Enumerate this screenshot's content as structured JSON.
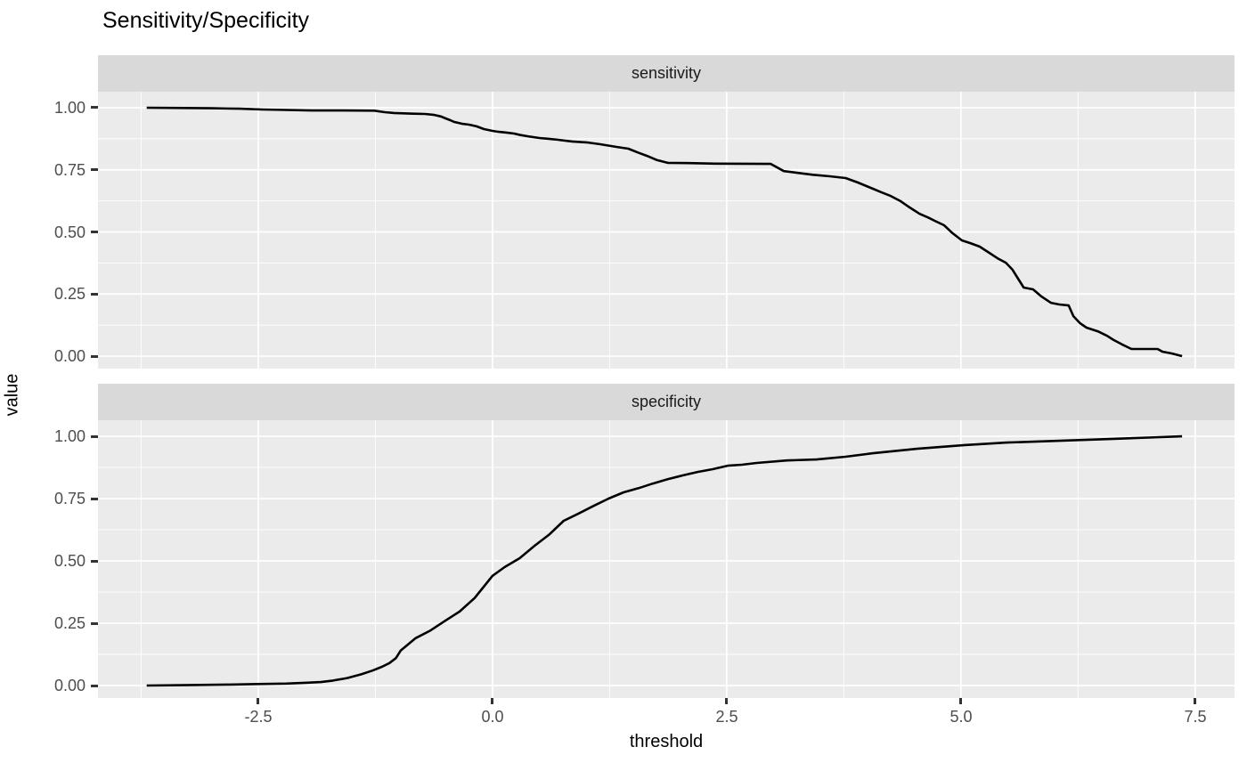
{
  "title": "Sensitivity/Specificity",
  "chart_data": {
    "type": "line",
    "title": "Sensitivity/Specificity",
    "xlabel": "threshold",
    "ylabel": "value",
    "legend": false,
    "grid": true,
    "xlim": [
      -4.21,
      7.92
    ],
    "ylim": [
      -0.05,
      1.0645
    ],
    "x_ticks": [
      -2.5,
      0,
      2.5,
      5,
      7.5
    ],
    "x_tick_labels": [
      "-2.5",
      "0.0",
      "2.5",
      "5.0",
      "7.5"
    ],
    "x_minor_ticks": [
      -3.75,
      -1.25,
      1.25,
      3.75,
      6.25
    ],
    "y_ticks": [
      0,
      0.25,
      0.5,
      0.75,
      1
    ],
    "y_tick_labels": [
      "0.00",
      "0.25",
      "0.50",
      "0.75",
      "1.00"
    ],
    "y_minor_ticks": [
      0.125,
      0.375,
      0.625,
      0.875
    ],
    "colors": {
      "panel_background": "#ebebeb",
      "strip_background": "#d9d9d9",
      "gridline": "#ffffff",
      "line": "#000000",
      "tick_label": "#4d4d4d",
      "tick_mark": "#333333",
      "text": "#000000"
    },
    "facets": [
      {
        "label": "sensitivity",
        "points": [
          [
            -3.69,
            1.0
          ],
          [
            -3.3,
            0.999
          ],
          [
            -3.0,
            0.998
          ],
          [
            -2.7,
            0.996
          ],
          [
            -2.45,
            0.993
          ],
          [
            -2.2,
            0.991
          ],
          [
            -1.93,
            0.989
          ],
          [
            -1.6,
            0.989
          ],
          [
            -1.26,
            0.988
          ],
          [
            -1.15,
            0.982
          ],
          [
            -1.05,
            0.979
          ],
          [
            -0.85,
            0.976
          ],
          [
            -0.72,
            0.975
          ],
          [
            -0.62,
            0.971
          ],
          [
            -0.55,
            0.965
          ],
          [
            -0.5,
            0.957
          ],
          [
            -0.45,
            0.95
          ],
          [
            -0.41,
            0.943
          ],
          [
            -0.33,
            0.936
          ],
          [
            -0.25,
            0.932
          ],
          [
            -0.17,
            0.925
          ],
          [
            -0.09,
            0.914
          ],
          [
            0.0,
            0.907
          ],
          [
            0.07,
            0.903
          ],
          [
            0.15,
            0.9
          ],
          [
            0.23,
            0.896
          ],
          [
            0.3,
            0.89
          ],
          [
            0.38,
            0.885
          ],
          [
            0.5,
            0.878
          ],
          [
            0.6,
            0.875
          ],
          [
            0.7,
            0.871
          ],
          [
            0.85,
            0.864
          ],
          [
            1.02,
            0.86
          ],
          [
            1.15,
            0.853
          ],
          [
            1.33,
            0.842
          ],
          [
            1.45,
            0.835
          ],
          [
            1.55,
            0.82
          ],
          [
            1.65,
            0.806
          ],
          [
            1.75,
            0.79
          ],
          [
            1.87,
            0.778
          ],
          [
            2.1,
            0.777
          ],
          [
            2.38,
            0.775
          ],
          [
            2.97,
            0.774
          ],
          [
            3.11,
            0.745
          ],
          [
            3.25,
            0.738
          ],
          [
            3.42,
            0.73
          ],
          [
            3.6,
            0.724
          ],
          [
            3.77,
            0.717
          ],
          [
            3.9,
            0.699
          ],
          [
            4.06,
            0.674
          ],
          [
            4.15,
            0.66
          ],
          [
            4.25,
            0.645
          ],
          [
            4.35,
            0.625
          ],
          [
            4.44,
            0.602
          ],
          [
            4.56,
            0.573
          ],
          [
            4.65,
            0.558
          ],
          [
            4.72,
            0.545
          ],
          [
            4.82,
            0.527
          ],
          [
            4.91,
            0.495
          ],
          [
            5.01,
            0.466
          ],
          [
            5.1,
            0.455
          ],
          [
            5.2,
            0.441
          ],
          [
            5.29,
            0.419
          ],
          [
            5.39,
            0.394
          ],
          [
            5.48,
            0.376
          ],
          [
            5.55,
            0.348
          ],
          [
            5.61,
            0.312
          ],
          [
            5.67,
            0.276
          ],
          [
            5.77,
            0.269
          ],
          [
            5.86,
            0.24
          ],
          [
            5.96,
            0.215
          ],
          [
            6.05,
            0.208
          ],
          [
            6.15,
            0.204
          ],
          [
            6.2,
            0.161
          ],
          [
            6.27,
            0.133
          ],
          [
            6.34,
            0.115
          ],
          [
            6.46,
            0.1
          ],
          [
            6.56,
            0.082
          ],
          [
            6.63,
            0.065
          ],
          [
            6.72,
            0.047
          ],
          [
            6.82,
            0.029
          ],
          [
            7.1,
            0.029
          ],
          [
            7.15,
            0.018
          ],
          [
            7.25,
            0.011
          ],
          [
            7.36,
            0.0
          ]
        ]
      },
      {
        "label": "specificity",
        "points": [
          [
            -3.69,
            0.0
          ],
          [
            -3.2,
            0.002
          ],
          [
            -2.8,
            0.004
          ],
          [
            -2.5,
            0.006
          ],
          [
            -2.2,
            0.008
          ],
          [
            -2.0,
            0.011
          ],
          [
            -1.83,
            0.014
          ],
          [
            -1.7,
            0.02
          ],
          [
            -1.55,
            0.03
          ],
          [
            -1.4,
            0.045
          ],
          [
            -1.28,
            0.06
          ],
          [
            -1.18,
            0.075
          ],
          [
            -1.1,
            0.09
          ],
          [
            -1.03,
            0.11
          ],
          [
            -0.98,
            0.14
          ],
          [
            -0.82,
            0.19
          ],
          [
            -0.66,
            0.221
          ],
          [
            -0.5,
            0.261
          ],
          [
            -0.35,
            0.297
          ],
          [
            -0.19,
            0.351
          ],
          [
            -0.1,
            0.393
          ],
          [
            0.0,
            0.44
          ],
          [
            0.13,
            0.475
          ],
          [
            0.29,
            0.511
          ],
          [
            0.45,
            0.561
          ],
          [
            0.61,
            0.607
          ],
          [
            0.76,
            0.661
          ],
          [
            0.92,
            0.69
          ],
          [
            1.08,
            0.721
          ],
          [
            1.24,
            0.75
          ],
          [
            1.4,
            0.775
          ],
          [
            1.56,
            0.792
          ],
          [
            1.71,
            0.81
          ],
          [
            1.87,
            0.828
          ],
          [
            2.03,
            0.843
          ],
          [
            2.19,
            0.857
          ],
          [
            2.35,
            0.868
          ],
          [
            2.51,
            0.882
          ],
          [
            2.66,
            0.886
          ],
          [
            2.82,
            0.893
          ],
          [
            3.14,
            0.903
          ],
          [
            3.46,
            0.907
          ],
          [
            3.77,
            0.918
          ],
          [
            4.06,
            0.932
          ],
          [
            4.53,
            0.95
          ],
          [
            5.04,
            0.965
          ],
          [
            5.49,
            0.975
          ],
          [
            6.12,
            0.983
          ],
          [
            6.63,
            0.99
          ],
          [
            7.0,
            0.995
          ],
          [
            7.36,
            1.0
          ]
        ]
      }
    ]
  },
  "layout_note": ""
}
